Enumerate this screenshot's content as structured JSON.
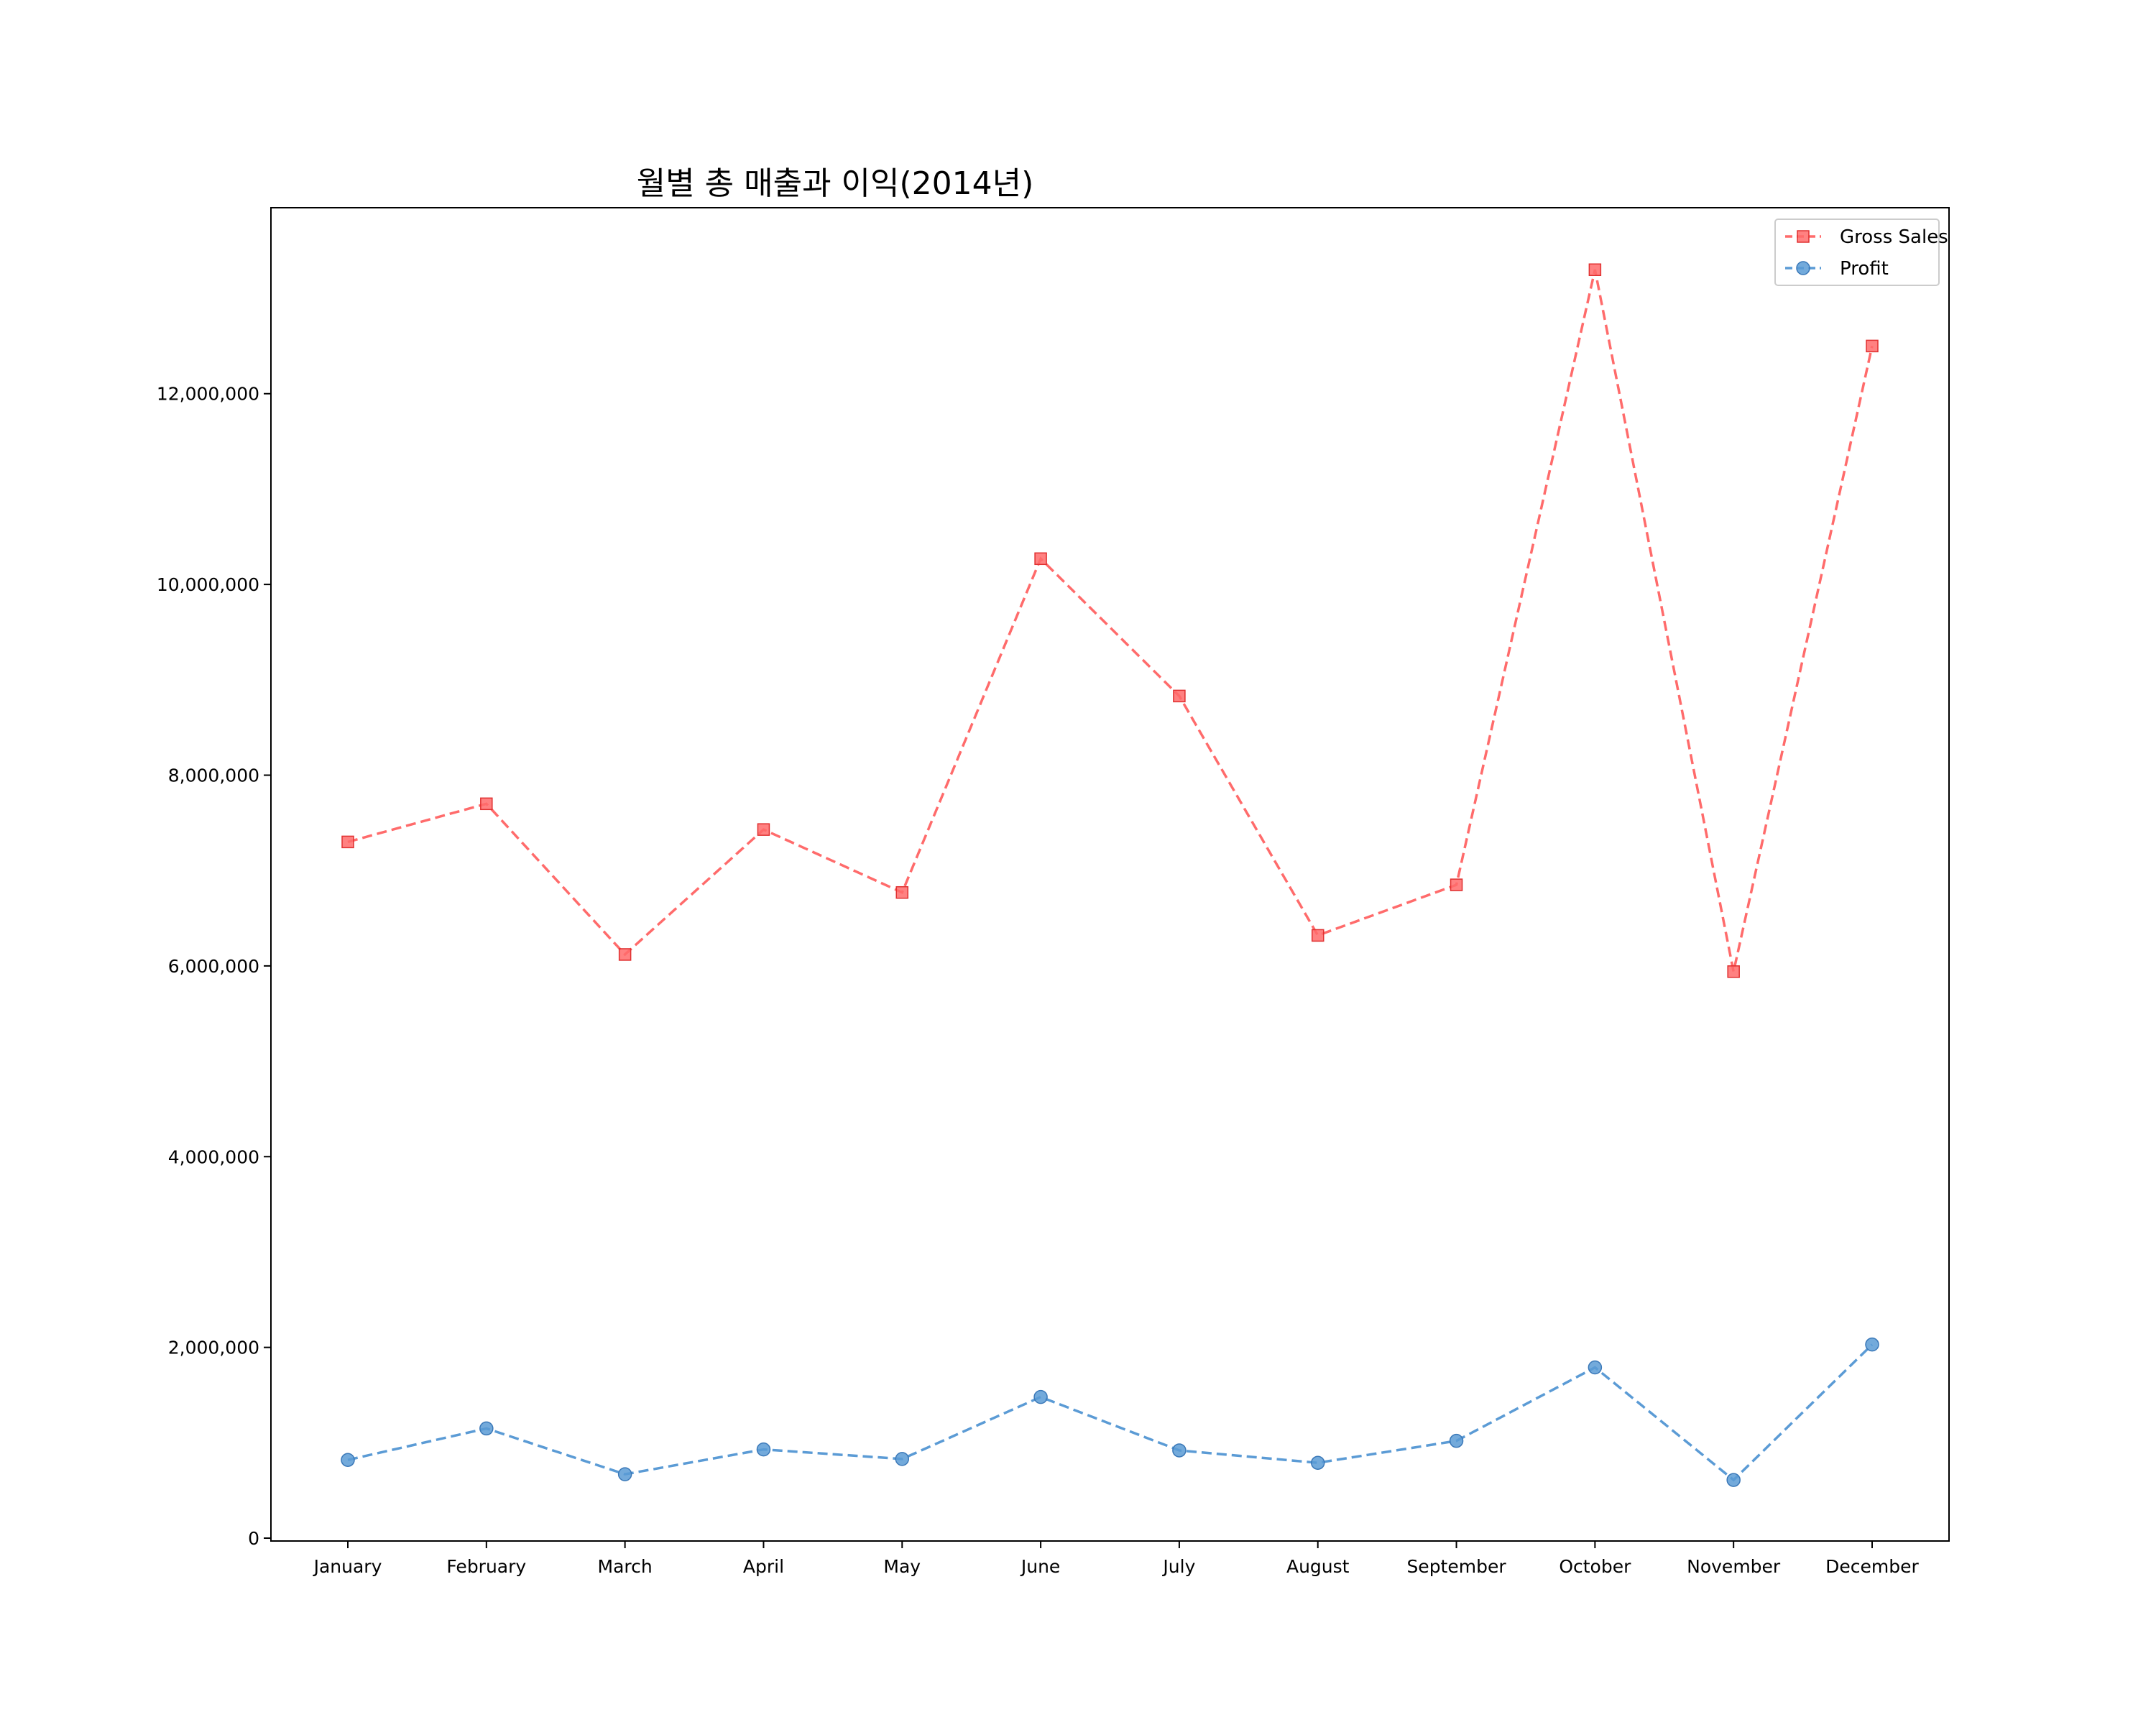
{
  "chart_data": {
    "type": "line",
    "title": "월별 총 매출과 이익(2014년)",
    "xlabel": "",
    "ylabel": "",
    "categories": [
      "January",
      "February",
      "March",
      "April",
      "May",
      "June",
      "July",
      "August",
      "September",
      "October",
      "November",
      "December"
    ],
    "series": [
      {
        "name": "Gross Sales",
        "color": "#ff6b6b",
        "marker": "square",
        "line_style": "dashed",
        "values": [
          7300000,
          7700000,
          6120000,
          7430000,
          6770000,
          10270000,
          8830000,
          6320000,
          6850000,
          13300000,
          5940000,
          12500000
        ]
      },
      {
        "name": "Profit",
        "color": "#5b9bd5",
        "marker": "circle",
        "line_style": "dashed",
        "values": [
          820000,
          1150000,
          670000,
          930000,
          830000,
          1480000,
          920000,
          790000,
          1020000,
          1790000,
          610000,
          2030000
        ]
      }
    ],
    "yticks": [
      0,
      2000000,
      4000000,
      6000000,
      8000000,
      10000000,
      12000000
    ],
    "ytick_labels": [
      "0",
      "2,000,000",
      "4,000,000",
      "6,000,000",
      "8,000,000",
      "10,000,000",
      "12,000,000"
    ],
    "ylim": [
      -30000,
      13950000
    ],
    "grid": false,
    "legend_position": "top-right"
  }
}
